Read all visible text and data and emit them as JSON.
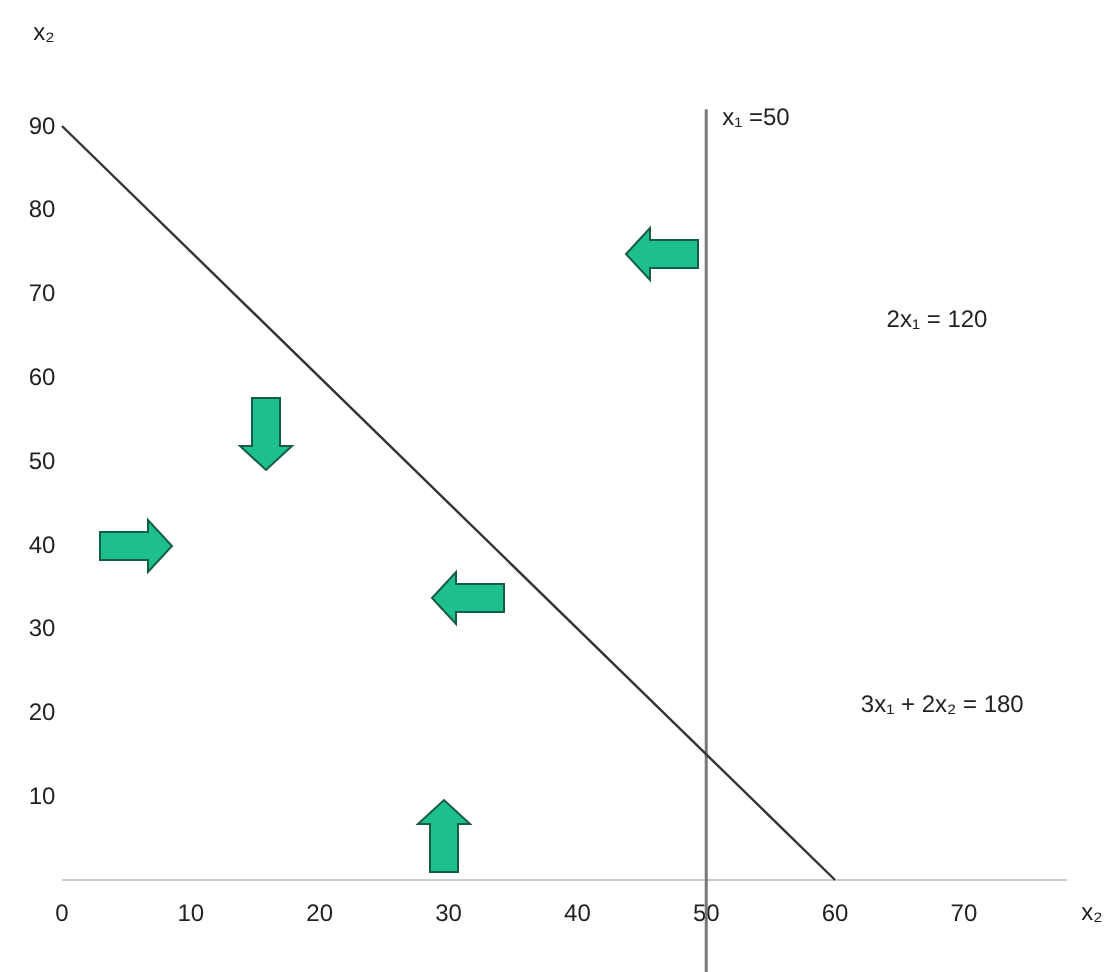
{
  "chart_data": {
    "type": "line",
    "xlabel": "x₂",
    "ylabel": "x₂",
    "xlim": [
      0,
      78
    ],
    "ylim": [
      0,
      90
    ],
    "xticks": [
      0,
      10,
      20,
      30,
      40,
      50,
      60,
      70
    ],
    "yticks": [
      10,
      20,
      30,
      40,
      50,
      60,
      70,
      80,
      90
    ],
    "grid": false,
    "marker": "none",
    "line_style": "solid",
    "series": [
      {
        "name": "3x₁ + 2x₂ = 180",
        "color": "#333333",
        "x": [
          0,
          60
        ],
        "values": [
          90,
          0
        ]
      }
    ],
    "ref_lines": [
      {
        "axis": "x",
        "value": 50,
        "label": "x₁ =50",
        "color": "#777777"
      }
    ],
    "annotations": [
      "2x₁ = 120"
    ]
  }
}
